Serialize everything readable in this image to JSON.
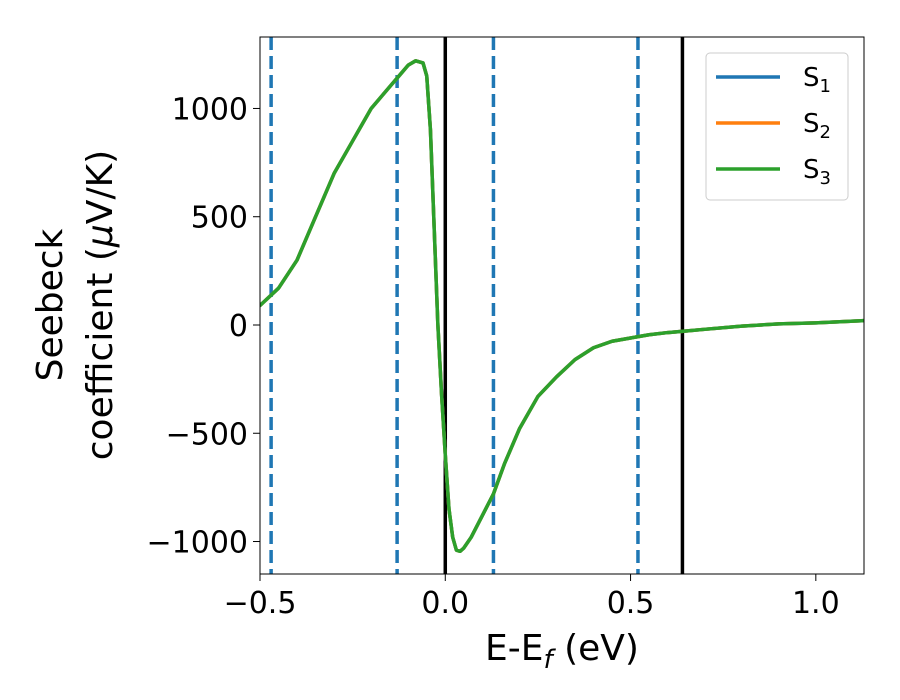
{
  "chart_data": {
    "type": "line",
    "xlabel": "E-E",
    "xlabel_sub": "f",
    "xlabel_unit": " (eV)",
    "ylabel_line1": "Seebeck",
    "ylabel_line2": "coefficient  (",
    "ylabel_mu": "μ",
    "ylabel_unit": "V/K)",
    "xlim": [
      -0.5,
      1.13
    ],
    "ylim": [
      -1150,
      1330
    ],
    "x_ticks": [
      {
        "value": -0.5,
        "label": "−0.5"
      },
      {
        "value": 0.0,
        "label": "0.0"
      },
      {
        "value": 0.5,
        "label": "0.5"
      },
      {
        "value": 1.0,
        "label": "1.0"
      }
    ],
    "y_ticks": [
      {
        "value": -1000,
        "label": "−1000"
      },
      {
        "value": -500,
        "label": "−500"
      },
      {
        "value": 0,
        "label": "0"
      },
      {
        "value": 500,
        "label": "500"
      },
      {
        "value": 1000,
        "label": "1000"
      }
    ],
    "legend_position": "top-right",
    "series": [
      {
        "name": "S",
        "sub": "1",
        "color": "#1f77b4",
        "x": [
          -0.5,
          -0.45,
          -0.4,
          -0.35,
          -0.3,
          -0.25,
          -0.2,
          -0.15,
          -0.12,
          -0.1,
          -0.08,
          -0.06,
          -0.05,
          -0.04,
          -0.03,
          -0.02,
          -0.01,
          0.0,
          0.01,
          0.02,
          0.03,
          0.04,
          0.05,
          0.07,
          0.1,
          0.13,
          0.16,
          0.2,
          0.25,
          0.3,
          0.35,
          0.4,
          0.45,
          0.5,
          0.55,
          0.6,
          0.65,
          0.7,
          0.8,
          0.9,
          1.0,
          1.13
        ],
        "y": [
          90,
          170,
          300,
          500,
          700,
          850,
          1000,
          1100,
          1160,
          1200,
          1220,
          1210,
          1150,
          900,
          450,
          0,
          -320,
          -600,
          -850,
          -980,
          -1040,
          -1045,
          -1030,
          -980,
          -880,
          -780,
          -640,
          -480,
          -330,
          -240,
          -160,
          -105,
          -75,
          -60,
          -45,
          -35,
          -28,
          -20,
          -5,
          5,
          10,
          20
        ]
      },
      {
        "name": "S",
        "sub": "2",
        "color": "#ff7f0e",
        "x": [
          -0.5,
          -0.45,
          -0.4,
          -0.35,
          -0.3,
          -0.25,
          -0.2,
          -0.15,
          -0.12,
          -0.1,
          -0.08,
          -0.06,
          -0.05,
          -0.04,
          -0.03,
          -0.02,
          -0.01,
          0.0,
          0.01,
          0.02,
          0.03,
          0.04,
          0.05,
          0.07,
          0.1,
          0.13,
          0.16,
          0.2,
          0.25,
          0.3,
          0.35,
          0.4,
          0.45,
          0.5,
          0.55,
          0.6,
          0.65,
          0.7,
          0.8,
          0.9,
          1.0,
          1.13
        ],
        "y": [
          90,
          170,
          300,
          500,
          700,
          850,
          1000,
          1100,
          1160,
          1200,
          1220,
          1210,
          1150,
          900,
          450,
          0,
          -320,
          -600,
          -850,
          -980,
          -1040,
          -1045,
          -1030,
          -980,
          -880,
          -780,
          -640,
          -480,
          -330,
          -240,
          -160,
          -105,
          -75,
          -60,
          -45,
          -35,
          -28,
          -20,
          -5,
          5,
          10,
          20
        ]
      },
      {
        "name": "S",
        "sub": "3",
        "color": "#2ca02c",
        "x": [
          -0.5,
          -0.45,
          -0.4,
          -0.35,
          -0.3,
          -0.25,
          -0.2,
          -0.15,
          -0.12,
          -0.1,
          -0.08,
          -0.06,
          -0.05,
          -0.04,
          -0.03,
          -0.02,
          -0.01,
          0.0,
          0.01,
          0.02,
          0.03,
          0.04,
          0.05,
          0.07,
          0.1,
          0.13,
          0.16,
          0.2,
          0.25,
          0.3,
          0.35,
          0.4,
          0.45,
          0.5,
          0.55,
          0.6,
          0.65,
          0.7,
          0.8,
          0.9,
          1.0,
          1.13
        ],
        "y": [
          90,
          170,
          300,
          500,
          700,
          850,
          1000,
          1100,
          1160,
          1200,
          1220,
          1210,
          1150,
          900,
          450,
          0,
          -320,
          -600,
          -850,
          -980,
          -1040,
          -1045,
          -1030,
          -980,
          -880,
          -780,
          -640,
          -480,
          -330,
          -240,
          -160,
          -105,
          -75,
          -60,
          -45,
          -35,
          -28,
          -20,
          -5,
          5,
          10,
          20
        ]
      }
    ],
    "vlines_dashed": {
      "color": "#1f77b4",
      "x": [
        -0.47,
        -0.13,
        0.13,
        0.52
      ]
    },
    "vlines_solid": {
      "color": "#000000",
      "x": [
        0.0,
        0.64
      ]
    }
  }
}
